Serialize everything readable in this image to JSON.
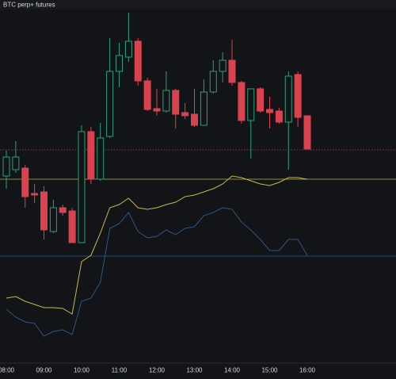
{
  "chart_data": {
    "type": "candlestick",
    "title": "BTC perp+ futures",
    "categories": [
      "08:00",
      null,
      null,
      null,
      "09:00",
      null,
      null,
      null,
      "10:00",
      null,
      null,
      null,
      "11:00",
      null,
      null,
      null,
      "12:00",
      null,
      null,
      null,
      "13:00",
      null,
      null,
      null,
      "14:00",
      null,
      null,
      null,
      "15:00",
      null,
      null,
      null,
      "16:00"
    ],
    "open": [
      236,
      244,
      246,
      214,
      216,
      166,
      196,
      192,
      152,
      292,
      232,
      286,
      368,
      386,
      406,
      356,
      321,
      318,
      344,
      316,
      314,
      300,
      342,
      368,
      382,
      354,
      306,
      346,
      320,
      318,
      304,
      364,
      312
    ],
    "high": [
      268,
      280,
      250,
      226,
      223,
      206,
      200,
      196,
      300,
      298,
      303,
      410,
      404,
      442,
      410,
      360,
      346,
      368,
      346,
      328,
      346,
      358,
      382,
      392,
      408,
      356,
      346,
      348,
      336,
      322,
      368,
      368,
      312
    ],
    "low": [
      220,
      240,
      196,
      202,
      156,
      164,
      186,
      152,
      152,
      226,
      230,
      284,
      348,
      380,
      350,
      318,
      312,
      316,
      296,
      308,
      298,
      300,
      340,
      354,
      350,
      302,
      258,
      316,
      296,
      302,
      244,
      298,
      270
    ],
    "close": [
      260,
      260,
      210,
      212,
      168,
      196,
      190,
      152,
      292,
      232,
      284,
      368,
      388,
      406,
      356,
      320,
      318,
      344,
      314,
      312,
      300,
      342,
      368,
      382,
      354,
      306,
      346,
      318,
      316,
      304,
      362,
      310,
      270
    ],
    "up_color": "#26a17b",
    "down_color": "#d9424f",
    "series": [
      {
        "color": "#c8b945",
        "values": [
          82,
          84,
          78,
          74,
          70,
          70,
          69,
          62,
          128,
          136,
          164,
          196,
          200,
          208,
          196,
          194,
          196,
          200,
          203,
          210,
          212,
          216,
          220,
          226,
          236,
          234,
          230,
          226,
          224,
          228,
          234,
          234,
          232
        ]
      },
      {
        "color": "#2d5680",
        "values": [
          68,
          58,
          52,
          50,
          34,
          40,
          42,
          36,
          78,
          82,
          102,
          170,
          176,
          190,
          166,
          158,
          160,
          168,
          162,
          170,
          172,
          186,
          190,
          196,
          194,
          178,
          168,
          156,
          142,
          142,
          156,
          156,
          136
        ]
      }
    ],
    "hlines": [
      {
        "value": 269,
        "color": "#8a3a42",
        "style": "dotted"
      },
      {
        "value": 232,
        "color": "#8f8740",
        "style": "solid"
      },
      {
        "value": 135,
        "color": "#2a4a6a",
        "style": "solid"
      }
    ],
    "ylim": [
      0,
      446
    ]
  }
}
